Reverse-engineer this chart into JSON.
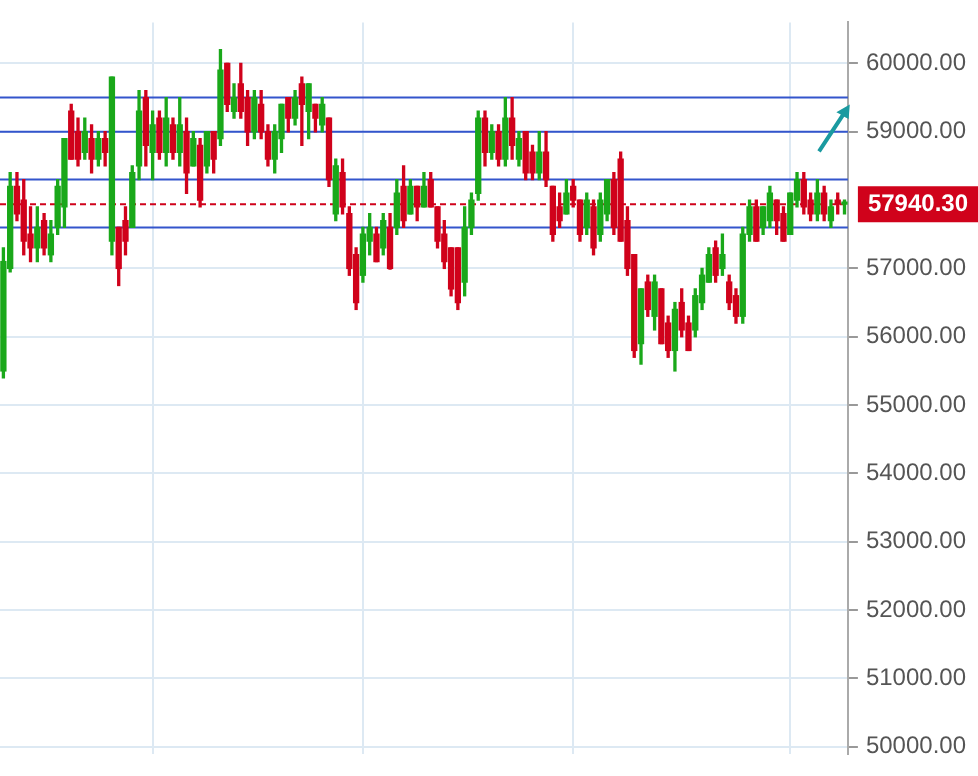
{
  "chart_data": {
    "type": "candlestick",
    "legend": false,
    "grid": true,
    "tick_labels": "y",
    "categories": [
      null,
      null,
      null,
      null,
      null,
      null,
      null,
      null,
      null,
      null,
      null,
      null,
      null,
      null,
      null,
      null,
      null,
      null,
      null,
      null,
      null,
      null,
      null,
      null,
      null,
      null,
      null,
      null,
      null,
      null,
      null,
      null,
      null,
      null,
      null,
      null,
      null,
      null,
      null,
      null,
      null,
      null,
      null,
      null,
      null,
      null,
      null,
      null,
      null,
      null,
      null,
      null,
      null,
      null,
      null,
      null,
      null,
      null,
      null,
      null,
      null,
      null,
      null,
      null,
      null,
      null,
      null,
      null,
      null,
      null,
      null,
      null,
      null,
      null,
      null,
      null,
      null,
      null,
      null,
      null,
      null,
      null,
      null,
      null,
      null,
      null,
      null,
      null,
      null,
      null,
      null,
      null,
      null,
      null,
      null,
      null,
      null,
      null,
      null,
      null,
      null,
      null,
      null,
      null,
      null,
      null,
      null,
      null,
      null,
      null,
      null,
      null,
      null,
      null,
      null,
      null,
      null,
      null,
      null,
      null,
      null,
      null,
      null,
      null,
      null
    ],
    "ohlc": [
      [
        55500,
        57300,
        55400,
        57100
      ],
      [
        57000,
        58400,
        56950,
        58200
      ],
      [
        58200,
        58400,
        57700,
        57800
      ],
      [
        58000,
        58300,
        57200,
        57400
      ],
      [
        57500,
        57900,
        57100,
        57300
      ],
      [
        57300,
        57900,
        57100,
        57600
      ],
      [
        57700,
        57800,
        57200,
        57300
      ],
      [
        57200,
        57700,
        57100,
        57500
      ],
      [
        57600,
        58300,
        57500,
        58200
      ],
      [
        57900,
        58900,
        57600,
        58900
      ],
      [
        59300,
        59400,
        58600,
        58600
      ],
      [
        59000,
        59200,
        58500,
        58600
      ],
      [
        58700,
        59200,
        58600,
        59000
      ],
      [
        58900,
        59100,
        58400,
        58600
      ],
      [
        58600,
        59000,
        58500,
        58900
      ],
      [
        58900,
        59000,
        58500,
        58700
      ],
      [
        57400,
        59800,
        57200,
        59800
      ],
      [
        57600,
        57600,
        56750,
        57000
      ],
      [
        57700,
        57900,
        57200,
        57400
      ],
      [
        57600,
        58500,
        57600,
        58400
      ],
      [
        58500,
        59600,
        58300,
        59300
      ],
      [
        59500,
        59600,
        58500,
        58800
      ],
      [
        58700,
        59300,
        58300,
        59100
      ],
      [
        59200,
        59300,
        58600,
        58700
      ],
      [
        58700,
        59500,
        58500,
        59200
      ],
      [
        59100,
        59200,
        58600,
        58700
      ],
      [
        58700,
        59500,
        58500,
        59100
      ],
      [
        59000,
        59200,
        58100,
        58400
      ],
      [
        58500,
        59000,
        58500,
        58900
      ],
      [
        58800,
        58900,
        57900,
        58000
      ],
      [
        58500,
        59000,
        58400,
        59000
      ],
      [
        59000,
        59000,
        58400,
        58600
      ],
      [
        58900,
        60200,
        58800,
        59900
      ],
      [
        60000,
        60000,
        59300,
        59400
      ],
      [
        59300,
        59700,
        59200,
        59500
      ],
      [
        59700,
        60000,
        59200,
        59300
      ],
      [
        59500,
        59600,
        58800,
        59000
      ],
      [
        59000,
        59600,
        58900,
        59500
      ],
      [
        59400,
        59600,
        58900,
        59000
      ],
      [
        59000,
        59100,
        58500,
        58600
      ],
      [
        58600,
        59100,
        58400,
        59000
      ],
      [
        58900,
        59400,
        58700,
        59400
      ],
      [
        59500,
        59500,
        59000,
        59200
      ],
      [
        59200,
        59600,
        59100,
        59500
      ],
      [
        59700,
        59800,
        58800,
        59400
      ],
      [
        59300,
        59700,
        58900,
        59700
      ],
      [
        59400,
        59400,
        59000,
        59200
      ],
      [
        59100,
        59500,
        59000,
        59400
      ],
      [
        59200,
        59200,
        58200,
        58300
      ],
      [
        57800,
        58600,
        57700,
        58500
      ],
      [
        58400,
        58600,
        57800,
        57900
      ],
      [
        57800,
        57900,
        56900,
        57000
      ],
      [
        57200,
        57300,
        56400,
        56500
      ],
      [
        56900,
        57600,
        56800,
        57500
      ],
      [
        57400,
        57800,
        57200,
        57600
      ],
      [
        57500,
        57600,
        57100,
        57100
      ],
      [
        57300,
        57800,
        57200,
        57700
      ],
      [
        57600,
        57800,
        56990,
        57000
      ],
      [
        57600,
        58300,
        57500,
        58100
      ],
      [
        58200,
        58500,
        57600,
        57700
      ],
      [
        57800,
        58300,
        57800,
        58200
      ],
      [
        58200,
        58200,
        57700,
        57900
      ],
      [
        57900,
        58400,
        57900,
        58200
      ],
      [
        58300,
        58400,
        57900,
        57900
      ],
      [
        57900,
        57900,
        57300,
        57400
      ],
      [
        57500,
        57700,
        57000,
        57100
      ],
      [
        57300,
        57300,
        56600,
        56700
      ],
      [
        57300,
        57300,
        56400,
        56500
      ],
      [
        56800,
        57900,
        56600,
        57600
      ],
      [
        57600,
        58100,
        57500,
        58000
      ],
      [
        58100,
        59300,
        58000,
        59200
      ],
      [
        59200,
        59300,
        58500,
        58700
      ],
      [
        58700,
        59100,
        58600,
        59000
      ],
      [
        59000,
        59100,
        58500,
        58600
      ],
      [
        58600,
        59500,
        58500,
        59200
      ],
      [
        59200,
        59500,
        58600,
        58800
      ],
      [
        58600,
        59000,
        58500,
        58900
      ],
      [
        59000,
        59000,
        58300,
        58400
      ],
      [
        58700,
        58800,
        58300,
        58400
      ],
      [
        58400,
        59000,
        58300,
        58700
      ],
      [
        58700,
        59000,
        58200,
        58300
      ],
      [
        58200,
        58200,
        57400,
        57500
      ],
      [
        57900,
        58100,
        57600,
        57700
      ],
      [
        57800,
        58300,
        57800,
        58100
      ],
      [
        58200,
        58300,
        57900,
        58000
      ],
      [
        58000,
        58000,
        57400,
        57500
      ],
      [
        57600,
        58100,
        57500,
        58000
      ],
      [
        57900,
        58000,
        57200,
        57300
      ],
      [
        57500,
        58100,
        57400,
        58000
      ],
      [
        57800,
        58300,
        57700,
        58300
      ],
      [
        58300,
        58400,
        57500,
        57600
      ],
      [
        58600,
        58700,
        57400,
        57400
      ],
      [
        57700,
        57900,
        56900,
        57000
      ],
      [
        57200,
        57200,
        55700,
        55800
      ],
      [
        55900,
        56700,
        55600,
        56700
      ],
      [
        56800,
        56900,
        56300,
        56400
      ],
      [
        56300,
        56900,
        56100,
        56800
      ],
      [
        56700,
        56700,
        55900,
        55900
      ],
      [
        56200,
        56300,
        55700,
        55800
      ],
      [
        55800,
        56500,
        55500,
        56400
      ],
      [
        56500,
        56700,
        56000,
        56100
      ],
      [
        56200,
        56300,
        55800,
        55800
      ],
      [
        56100,
        56700,
        56000,
        56600
      ],
      [
        56500,
        57000,
        56400,
        56900
      ],
      [
        56800,
        57300,
        56800,
        57200
      ],
      [
        57300,
        57400,
        56800,
        56900
      ],
      [
        57000,
        57500,
        56900,
        57200
      ],
      [
        56800,
        56900,
        56400,
        56500
      ],
      [
        56600,
        56700,
        56200,
        56300
      ],
      [
        56300,
        57600,
        56200,
        57500
      ],
      [
        57500,
        58000,
        57400,
        57900
      ],
      [
        57900,
        58000,
        57400,
        57400
      ],
      [
        57600,
        57900,
        57500,
        57900
      ],
      [
        57700,
        58200,
        57600,
        58100
      ],
      [
        58000,
        58000,
        57500,
        57700
      ],
      [
        57800,
        57900,
        57400,
        57400
      ],
      [
        57500,
        58100,
        57500,
        58100
      ],
      [
        58000,
        58400,
        57900,
        58300
      ],
      [
        58300,
        58400,
        57800,
        57900
      ],
      [
        58000,
        58100,
        57700,
        57800
      ],
      [
        57800,
        58300,
        57700,
        58100
      ],
      [
        58100,
        58200,
        57700,
        57800
      ],
      [
        57700,
        58000,
        57600,
        57900
      ],
      [
        58000,
        58100,
        57800,
        57940.3
      ],
      [
        57940.3,
        58000,
        57800,
        57940.3
      ]
    ],
    "ylim": [
      49900,
      60600
    ],
    "yticks": [
      {
        "value": 50000,
        "label": "50000.00"
      },
      {
        "value": 51000,
        "label": "51000.00"
      },
      {
        "value": 52000,
        "label": "52000.00"
      },
      {
        "value": 53000,
        "label": "53000.00"
      },
      {
        "value": 54000,
        "label": "54000.00"
      },
      {
        "value": 55000,
        "label": "55000.00"
      },
      {
        "value": 56000,
        "label": "56000.00"
      },
      {
        "value": 57000,
        "label": "57000.00"
      },
      {
        "value": 59000,
        "label": "59000.00"
      },
      {
        "value": 60000,
        "label": "60000.00"
      }
    ],
    "ref_lines": [
      {
        "axis": "y",
        "value": 57940.3,
        "label": "57940.30",
        "color": "#d0021b",
        "line_style": "dashed"
      },
      {
        "axis": "y",
        "value": 59500,
        "color": "#3355cc"
      },
      {
        "axis": "y",
        "value": 59000,
        "color": "#3355cc"
      },
      {
        "axis": "y",
        "value": 58300,
        "color": "#3355cc"
      },
      {
        "axis": "y",
        "value": 57600,
        "color": "#3355cc"
      }
    ]
  }
}
